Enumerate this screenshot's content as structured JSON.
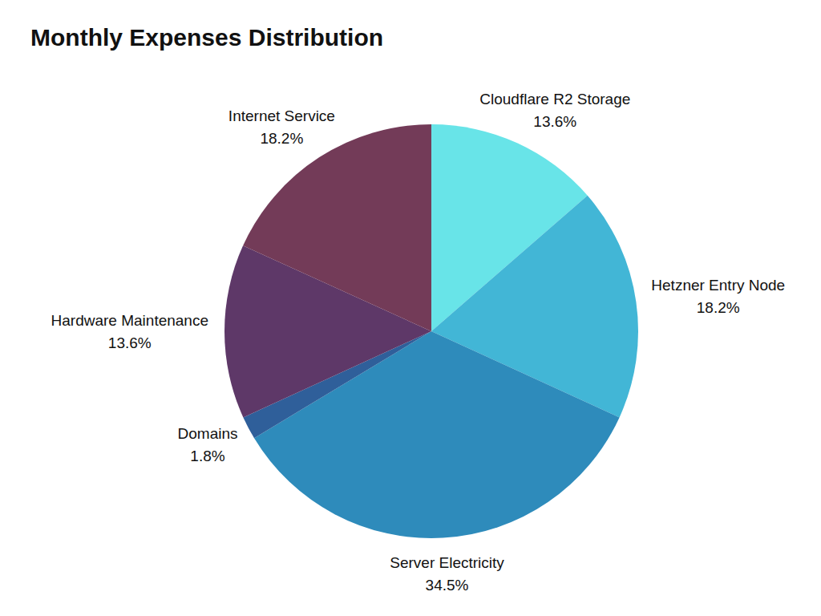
{
  "chart_data": {
    "type": "pie",
    "title": "Monthly Expenses Distribution",
    "categories": [
      "Cloudflare R2 Storage",
      "Hetzner Entry Node",
      "Server Electricity",
      "Domains",
      "Hardware Maintenance",
      "Internet Service"
    ],
    "values": [
      13.6,
      18.2,
      34.5,
      1.8,
      13.6,
      18.2
    ],
    "value_labels": [
      "13.6%",
      "18.2%",
      "34.5%",
      "1.8%",
      "13.6%",
      "18.2%"
    ],
    "colors": [
      "#68e4e8",
      "#42b6d6",
      "#2e8bbb",
      "#2f5f9a",
      "#5e3868",
      "#733b58"
    ],
    "data_labels": true
  }
}
